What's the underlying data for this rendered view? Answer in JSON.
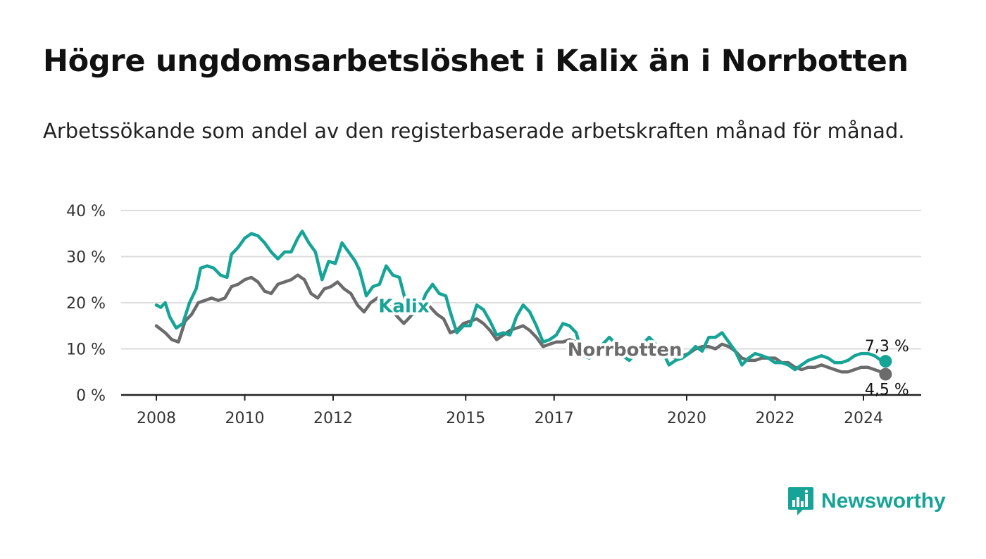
{
  "title": "Högre ungdomsarbetslöshet i Kalix än i Norrbotten",
  "subtitle": "Arbetssökande som andel av den registerbaserade arbetskraften månad för månad.",
  "brand": {
    "name": "Newsworthy",
    "color": "#16a497"
  },
  "chart_data": {
    "type": "line",
    "title": "Högre ungdomsarbetslöshet i Kalix än i Norrbotten",
    "subtitle": "Arbetssökande som andel av den registerbaserade arbetskraften månad för månad.",
    "ylim": [
      0,
      40
    ],
    "yticks": [
      0,
      10,
      20,
      30,
      40
    ],
    "ytick_labels": [
      "0 %",
      "10 %",
      "20 %",
      "30 %",
      "40 %"
    ],
    "xlim": [
      2008.0,
      2024.5
    ],
    "xticks": [
      2008,
      2010,
      2012,
      2015,
      2017,
      2020,
      2022,
      2024
    ],
    "xtick_labels": [
      "2008",
      "2010",
      "2012",
      "2015",
      "2017",
      "2020",
      "2022",
      "2024"
    ],
    "grid": "horizontal",
    "series": [
      {
        "name": "Norrbotten",
        "color": "#6b6b6b",
        "end_label": "4,5 %",
        "points": [
          [
            2008.0,
            15.0
          ],
          [
            2008.2,
            13.5
          ],
          [
            2008.35,
            12.0
          ],
          [
            2008.5,
            11.5
          ],
          [
            2008.65,
            16.0
          ],
          [
            2008.8,
            17.5
          ],
          [
            2008.95,
            20.0
          ],
          [
            2009.1,
            20.5
          ],
          [
            2009.25,
            21.0
          ],
          [
            2009.4,
            20.5
          ],
          [
            2009.55,
            21.0
          ],
          [
            2009.7,
            23.5
          ],
          [
            2009.85,
            24.0
          ],
          [
            2010.0,
            25.0
          ],
          [
            2010.15,
            25.5
          ],
          [
            2010.3,
            24.5
          ],
          [
            2010.45,
            22.5
          ],
          [
            2010.6,
            22.0
          ],
          [
            2010.75,
            24.0
          ],
          [
            2010.9,
            24.5
          ],
          [
            2011.05,
            25.0
          ],
          [
            2011.2,
            26.0
          ],
          [
            2011.35,
            25.0
          ],
          [
            2011.5,
            22.0
          ],
          [
            2011.65,
            21.0
          ],
          [
            2011.8,
            23.0
          ],
          [
            2011.95,
            23.5
          ],
          [
            2012.1,
            24.5
          ],
          [
            2012.25,
            23.0
          ],
          [
            2012.4,
            22.0
          ],
          [
            2012.55,
            19.5
          ],
          [
            2012.7,
            18.0
          ],
          [
            2012.85,
            20.0
          ],
          [
            2013.0,
            21.0
          ],
          [
            2013.15,
            20.5
          ],
          [
            2013.3,
            19.0
          ],
          [
            2013.45,
            17.0
          ],
          [
            2013.6,
            15.5
          ],
          [
            2013.75,
            17.0
          ],
          [
            2013.9,
            19.0
          ],
          [
            2014.05,
            20.5
          ],
          [
            2014.2,
            19.0
          ],
          [
            2014.35,
            17.5
          ],
          [
            2014.5,
            16.5
          ],
          [
            2014.65,
            13.5
          ],
          [
            2014.8,
            14.0
          ],
          [
            2014.95,
            15.5
          ],
          [
            2015.1,
            16.0
          ],
          [
            2015.25,
            16.5
          ],
          [
            2015.4,
            15.5
          ],
          [
            2015.55,
            14.0
          ],
          [
            2015.7,
            12.0
          ],
          [
            2015.85,
            13.0
          ],
          [
            2016.0,
            14.0
          ],
          [
            2016.15,
            14.5
          ],
          [
            2016.3,
            15.0
          ],
          [
            2016.45,
            14.0
          ],
          [
            2016.6,
            12.5
          ],
          [
            2016.75,
            10.5
          ],
          [
            2016.9,
            11.0
          ],
          [
            2017.05,
            11.5
          ],
          [
            2017.2,
            11.5
          ],
          [
            2017.35,
            12.0
          ],
          [
            2017.5,
            11.5
          ],
          [
            2017.65,
            9.5
          ],
          [
            2017.8,
            9.0
          ],
          [
            2017.95,
            9.5
          ],
          [
            2018.1,
            10.0
          ],
          [
            2018.25,
            10.5
          ],
          [
            2018.4,
            10.5
          ],
          [
            2018.55,
            10.0
          ],
          [
            2018.7,
            9.0
          ],
          [
            2018.85,
            9.5
          ],
          [
            2019.0,
            10.0
          ],
          [
            2019.15,
            10.0
          ],
          [
            2019.3,
            10.0
          ],
          [
            2019.45,
            9.5
          ],
          [
            2019.6,
            8.5
          ],
          [
            2019.75,
            8.0
          ],
          [
            2019.9,
            8.5
          ],
          [
            2020.05,
            9.0
          ],
          [
            2020.2,
            10.0
          ],
          [
            2020.35,
            10.5
          ],
          [
            2020.5,
            10.5
          ],
          [
            2020.65,
            10.0
          ],
          [
            2020.8,
            11.0
          ],
          [
            2020.95,
            10.5
          ],
          [
            2021.1,
            9.5
          ],
          [
            2021.25,
            8.0
          ],
          [
            2021.4,
            7.5
          ],
          [
            2021.55,
            7.5
          ],
          [
            2021.7,
            8.0
          ],
          [
            2021.85,
            8.0
          ],
          [
            2022.0,
            8.0
          ],
          [
            2022.15,
            7.0
          ],
          [
            2022.3,
            7.0
          ],
          [
            2022.45,
            6.0
          ],
          [
            2022.6,
            5.5
          ],
          [
            2022.75,
            6.0
          ],
          [
            2022.9,
            6.0
          ],
          [
            2023.05,
            6.5
          ],
          [
            2023.2,
            6.0
          ],
          [
            2023.35,
            5.5
          ],
          [
            2023.5,
            5.0
          ],
          [
            2023.65,
            5.0
          ],
          [
            2023.8,
            5.5
          ],
          [
            2023.95,
            6.0
          ],
          [
            2024.1,
            6.0
          ],
          [
            2024.25,
            5.5
          ],
          [
            2024.4,
            5.0
          ],
          [
            2024.5,
            4.5
          ]
        ]
      },
      {
        "name": "Kalix",
        "color": "#16a497",
        "end_label": "7,3 %",
        "points": [
          [
            2008.0,
            19.5
          ],
          [
            2008.1,
            19.0
          ],
          [
            2008.2,
            20.0
          ],
          [
            2008.3,
            17.0
          ],
          [
            2008.45,
            14.5
          ],
          [
            2008.6,
            15.5
          ],
          [
            2008.75,
            20.0
          ],
          [
            2008.9,
            23.0
          ],
          [
            2009.0,
            27.5
          ],
          [
            2009.15,
            28.0
          ],
          [
            2009.3,
            27.5
          ],
          [
            2009.45,
            26.0
          ],
          [
            2009.6,
            25.5
          ],
          [
            2009.7,
            30.5
          ],
          [
            2009.85,
            32.0
          ],
          [
            2010.0,
            34.0
          ],
          [
            2010.15,
            35.0
          ],
          [
            2010.3,
            34.5
          ],
          [
            2010.45,
            33.0
          ],
          [
            2010.6,
            31.0
          ],
          [
            2010.75,
            29.5
          ],
          [
            2010.9,
            31.0
          ],
          [
            2011.05,
            31.0
          ],
          [
            2011.2,
            34.0
          ],
          [
            2011.3,
            35.5
          ],
          [
            2011.45,
            33.0
          ],
          [
            2011.6,
            31.0
          ],
          [
            2011.75,
            25.0
          ],
          [
            2011.9,
            29.0
          ],
          [
            2012.05,
            28.5
          ],
          [
            2012.2,
            33.0
          ],
          [
            2012.35,
            31.0
          ],
          [
            2012.5,
            29.0
          ],
          [
            2012.6,
            27.0
          ],
          [
            2012.75,
            21.5
          ],
          [
            2012.9,
            23.5
          ],
          [
            2013.05,
            24.0
          ],
          [
            2013.2,
            28.0
          ],
          [
            2013.35,
            26.0
          ],
          [
            2013.5,
            25.5
          ],
          [
            2013.65,
            20.0
          ],
          [
            2013.8,
            17.5
          ],
          [
            2013.95,
            18.5
          ],
          [
            2014.1,
            22.0
          ],
          [
            2014.25,
            24.0
          ],
          [
            2014.4,
            22.0
          ],
          [
            2014.55,
            21.5
          ],
          [
            2014.65,
            18.0
          ],
          [
            2014.8,
            13.5
          ],
          [
            2014.95,
            15.0
          ],
          [
            2015.1,
            15.0
          ],
          [
            2015.25,
            19.5
          ],
          [
            2015.4,
            18.5
          ],
          [
            2015.55,
            16.0
          ],
          [
            2015.7,
            13.0
          ],
          [
            2015.85,
            13.5
          ],
          [
            2016.0,
            13.0
          ],
          [
            2016.15,
            17.0
          ],
          [
            2016.3,
            19.5
          ],
          [
            2016.45,
            18.0
          ],
          [
            2016.6,
            15.0
          ],
          [
            2016.75,
            11.5
          ],
          [
            2016.9,
            12.0
          ],
          [
            2017.05,
            13.0
          ],
          [
            2017.2,
            15.5
          ],
          [
            2017.35,
            15.0
          ],
          [
            2017.5,
            13.5
          ],
          [
            2017.65,
            8.5
          ],
          [
            2017.8,
            8.0
          ],
          [
            2017.95,
            9.5
          ],
          [
            2018.1,
            11.0
          ],
          [
            2018.25,
            12.5
          ],
          [
            2018.4,
            11.0
          ],
          [
            2018.55,
            8.5
          ],
          [
            2018.7,
            7.5
          ],
          [
            2018.85,
            9.0
          ],
          [
            2019.0,
            11.0
          ],
          [
            2019.15,
            12.5
          ],
          [
            2019.3,
            11.0
          ],
          [
            2019.45,
            9.5
          ],
          [
            2019.6,
            6.5
          ],
          [
            2019.75,
            7.5
          ],
          [
            2019.9,
            8.0
          ],
          [
            2020.05,
            9.0
          ],
          [
            2020.2,
            10.5
          ],
          [
            2020.35,
            9.5
          ],
          [
            2020.5,
            12.5
          ],
          [
            2020.65,
            12.5
          ],
          [
            2020.8,
            13.5
          ],
          [
            2020.95,
            11.5
          ],
          [
            2021.1,
            9.5
          ],
          [
            2021.25,
            6.5
          ],
          [
            2021.4,
            8.0
          ],
          [
            2021.55,
            9.0
          ],
          [
            2021.7,
            8.5
          ],
          [
            2021.85,
            8.0
          ],
          [
            2022.0,
            7.0
          ],
          [
            2022.15,
            7.0
          ],
          [
            2022.3,
            6.5
          ],
          [
            2022.45,
            5.5
          ],
          [
            2022.6,
            6.5
          ],
          [
            2022.75,
            7.5
          ],
          [
            2022.9,
            8.0
          ],
          [
            2023.05,
            8.5
          ],
          [
            2023.2,
            8.0
          ],
          [
            2023.35,
            7.0
          ],
          [
            2023.5,
            7.0
          ],
          [
            2023.65,
            7.5
          ],
          [
            2023.8,
            8.5
          ],
          [
            2023.95,
            9.0
          ],
          [
            2024.1,
            9.0
          ],
          [
            2024.25,
            8.5
          ],
          [
            2024.4,
            7.5
          ],
          [
            2024.5,
            7.3
          ]
        ]
      }
    ],
    "annotations": [
      {
        "text": "Kalix",
        "series": "Kalix",
        "x": 2013.6,
        "y": 19.5
      },
      {
        "text": "Norrbotten",
        "series": "Norrbotten",
        "x": 2018.6,
        "y": 10.0
      }
    ]
  }
}
